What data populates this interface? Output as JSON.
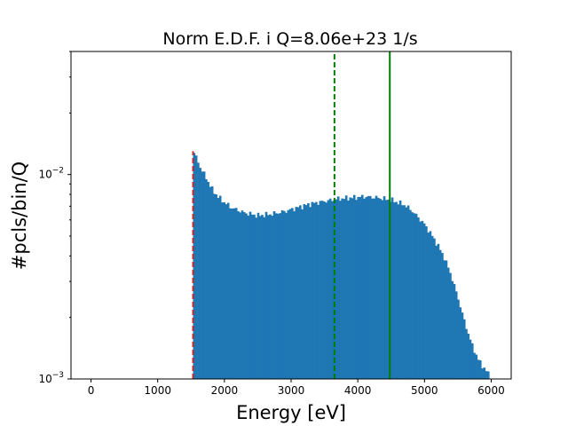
{
  "chart_data": {
    "type": "bar",
    "title": "Norm E.D.F.  i Q=8.06e+23 1/s",
    "xlabel": "Energy [eV]",
    "ylabel": "#pcls/bin/Q",
    "xlim": [
      -300,
      6300
    ],
    "ylim": [
      0.001,
      0.04
    ],
    "yscale": "log",
    "grid": false,
    "x_ticks": [
      0,
      1000,
      2000,
      3000,
      4000,
      5000,
      6000
    ],
    "y_ticks": [
      {
        "value": 0.01,
        "base": "10",
        "exp": "−2"
      },
      {
        "value": 0.001,
        "base": "10",
        "exp": "−3"
      }
    ],
    "bar_color": "#1f77b4",
    "histogram": {
      "x_start": 1530,
      "x_end": 6000,
      "bin_width": 30,
      "anchors": [
        [
          1530,
          0.013
        ],
        [
          1560,
          0.0125
        ],
        [
          1590,
          0.0118
        ],
        [
          1620,
          0.0112
        ],
        [
          1650,
          0.0106
        ],
        [
          1700,
          0.01
        ],
        [
          1750,
          0.0093
        ],
        [
          1800,
          0.0086
        ],
        [
          1900,
          0.0078
        ],
        [
          2000,
          0.0073
        ],
        [
          2100,
          0.0069
        ],
        [
          2200,
          0.0067
        ],
        [
          2300,
          0.0065
        ],
        [
          2500,
          0.0063
        ],
        [
          2700,
          0.0064
        ],
        [
          2900,
          0.0066
        ],
        [
          3100,
          0.0069
        ],
        [
          3300,
          0.0072
        ],
        [
          3500,
          0.0074
        ],
        [
          3700,
          0.0076
        ],
        [
          3900,
          0.0077
        ],
        [
          4100,
          0.0078
        ],
        [
          4300,
          0.0077
        ],
        [
          4500,
          0.0075
        ],
        [
          4700,
          0.0071
        ],
        [
          4800,
          0.0067
        ],
        [
          4900,
          0.0062
        ],
        [
          5000,
          0.0057
        ],
        [
          5100,
          0.0051
        ],
        [
          5200,
          0.0045
        ],
        [
          5300,
          0.0039
        ],
        [
          5400,
          0.0032
        ],
        [
          5500,
          0.0025
        ],
        [
          5600,
          0.0019
        ],
        [
          5700,
          0.0015
        ],
        [
          5800,
          0.00125
        ],
        [
          5900,
          0.00112
        ],
        [
          6000,
          0.00102
        ]
      ]
    },
    "vlines": [
      {
        "x": 1530,
        "color": "#c62828",
        "style": "dashed",
        "ymax": 0.013
      },
      {
        "x": 3650,
        "color": "#008000",
        "style": "dashed",
        "ymax": 0.04
      },
      {
        "x": 4480,
        "color": "#008000",
        "style": "solid",
        "ymax": 0.04
      }
    ]
  }
}
